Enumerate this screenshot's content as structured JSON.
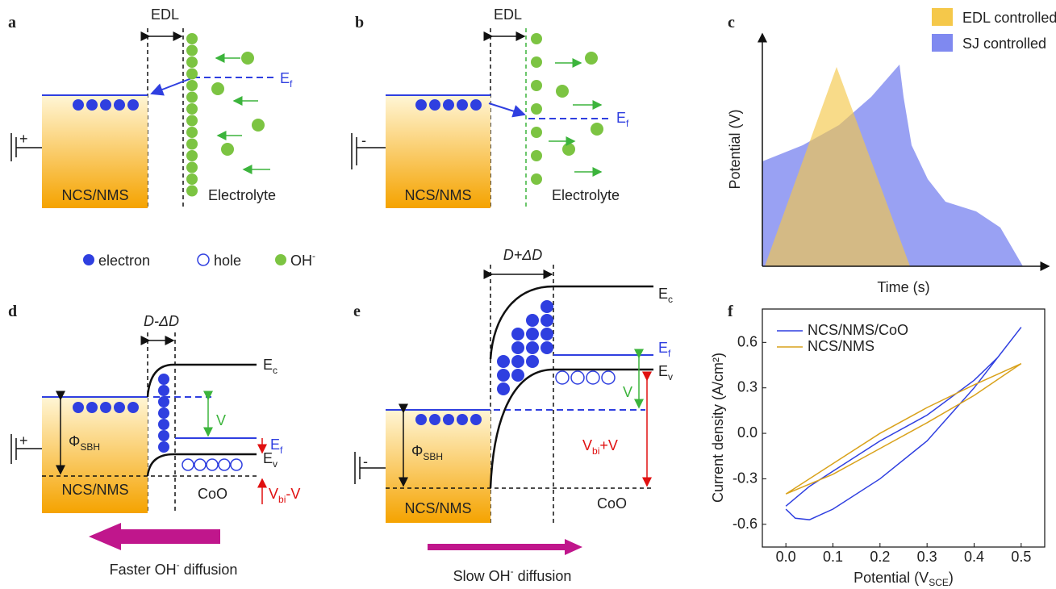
{
  "panels": {
    "a": {
      "label": "a",
      "edl": "EDL",
      "e": "E",
      "e_sub": "f",
      "material": "NCS/NMS",
      "electrolyte": "Electrolyte",
      "sign": "+"
    },
    "b": {
      "label": "b",
      "edl": "EDL",
      "e": "E",
      "e_sub": "f",
      "material": "NCS/NMS",
      "electrolyte": "Electrolyte",
      "sign": "-"
    },
    "legend": {
      "electron": "electron",
      "hole": "hole",
      "oh": "OH",
      "oh_sup": "-"
    },
    "c": {
      "label": "c",
      "series": [
        "EDL controlled",
        "SJ controlled"
      ],
      "xlabel": "Time (s)",
      "ylabel": "Potential (V)"
    },
    "d": {
      "label": "d",
      "width": "D-ΔD",
      "ec": "E",
      "ec_sub": "c",
      "ef": "E",
      "ef_sub": "f",
      "ev": "E",
      "ev_sub": "v",
      "phi": "Φ",
      "phi_sub": "SBH",
      "v": "V",
      "vbi": "V",
      "vbi_sub": "bi",
      "vbi_end": "-V",
      "material": "NCS/NMS",
      "oxide": "CoO",
      "sign": "+",
      "diffusion": "Faster OH",
      "diffusion_sup": "-",
      "diffusion_end": " diffusion"
    },
    "e": {
      "label": "e",
      "width": "D+ΔD",
      "ec": "E",
      "ec_sub": "c",
      "ef": "E",
      "ef_sub": "f",
      "ev": "E",
      "ev_sub": "v",
      "phi": "Φ",
      "phi_sub": "SBH",
      "v": "V",
      "vbi": "V",
      "vbi_sub": "bi",
      "vbi_end": "+V",
      "material": "NCS/NMS",
      "oxide": "CoO",
      "sign": "-",
      "diffusion": "Slow OH",
      "diffusion_sup": "-",
      "diffusion_end": " diffusion"
    },
    "f": {
      "label": "f",
      "xlabel": "Potential (V",
      "xlabel_sub": "SCE",
      "xlabel_end": ")",
      "ylabel": "Current density (A/cm²)"
    }
  },
  "chart_data": {
    "type": "line",
    "series": [
      {
        "name": "NCS/NMS/CoO",
        "color": "#2f3fe0",
        "x": [
          0.0,
          0.02,
          0.05,
          0.1,
          0.2,
          0.3,
          0.4,
          0.5,
          0.45,
          0.4,
          0.3,
          0.2,
          0.1,
          0.05,
          0.0
        ],
        "values": [
          -0.5,
          -0.56,
          -0.57,
          -0.5,
          -0.3,
          -0.05,
          0.3,
          0.7,
          0.5,
          0.35,
          0.12,
          -0.05,
          -0.25,
          -0.35,
          -0.48
        ]
      },
      {
        "name": "NCS/NMS",
        "color": "#d9a21b",
        "x": [
          0.0,
          0.1,
          0.2,
          0.3,
          0.4,
          0.5,
          0.4,
          0.3,
          0.2,
          0.1,
          0.0
        ],
        "values": [
          -0.4,
          -0.2,
          0.0,
          0.17,
          0.32,
          0.46,
          0.25,
          0.07,
          -0.1,
          -0.27,
          -0.4
        ]
      }
    ],
    "xlim": [
      -0.05,
      0.55
    ],
    "ylim": [
      -0.75,
      0.82
    ],
    "xticks": [
      {
        "value": 0,
        "label": "0.0"
      },
      0.1,
      0.2,
      0.3,
      0.4,
      0.5
    ],
    "yticks": [
      -0.6,
      -0.3,
      {
        "value": 0,
        "label": "0.0"
      },
      0.3,
      0.6
    ],
    "legend": "upper-left"
  }
}
